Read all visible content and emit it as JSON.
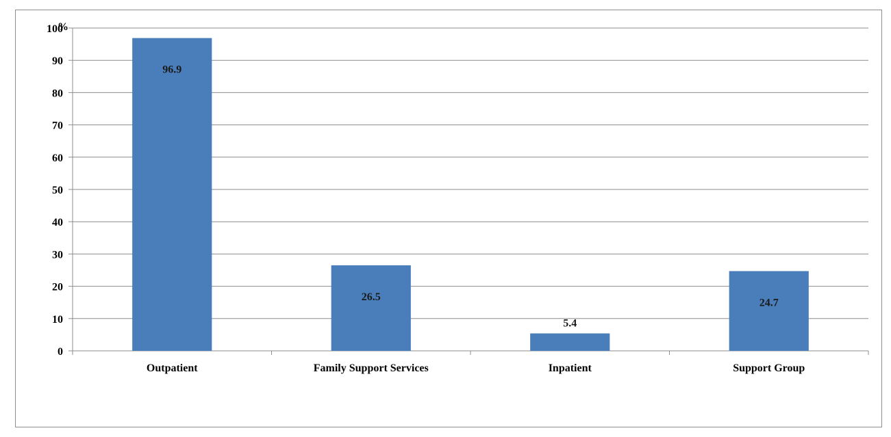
{
  "chart_data": {
    "type": "bar",
    "categories": [
      "Outpatient",
      "Family Support Services",
      "Inpatient",
      "Support Group"
    ],
    "values": [
      96.9,
      26.5,
      5.4,
      24.7
    ],
    "data_labels": [
      "96.9",
      "26.5",
      "5.4",
      "24.7"
    ],
    "ylim": [
      0,
      100
    ],
    "yticks": [
      "0",
      "10",
      "20",
      "30",
      "40",
      "50",
      "60",
      "70",
      "80",
      "90",
      "100"
    ],
    "ytick_values": [
      0,
      10,
      20,
      30,
      40,
      50,
      60,
      70,
      80,
      90,
      100
    ],
    "yunit": "%",
    "title": "",
    "xlabel": "",
    "ylabel": "",
    "grid": true,
    "legend": "none",
    "bar_color": "#4a7ebb",
    "grid_color": "#8c8c8c"
  }
}
